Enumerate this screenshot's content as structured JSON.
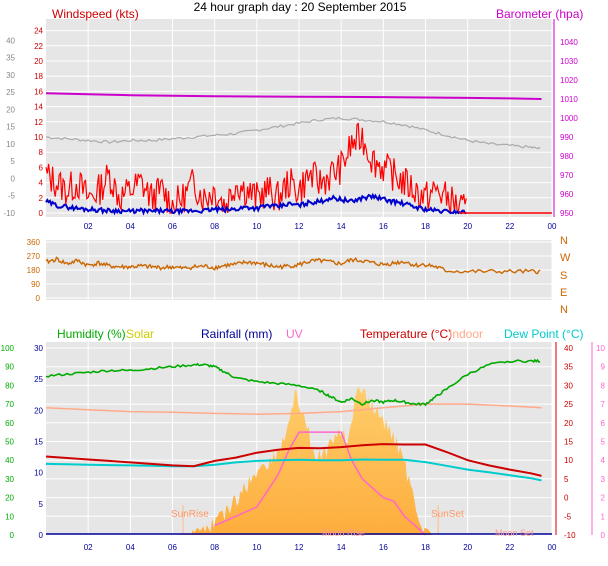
{
  "title": "24 hour graph day : 20 September 2015",
  "x_ticks": [
    "02",
    "04",
    "06",
    "08",
    "10",
    "12",
    "14",
    "16",
    "18",
    "20",
    "22",
    "00"
  ],
  "colors": {
    "windspeed": "#ff0000",
    "gust_avg": "#0000cc",
    "barometer": "#cc00cc",
    "temp_left_axis": "#888888",
    "winddir": "#cc6600",
    "humidity": "#00aa00",
    "solar": "#cccc00",
    "rainfall": "#000099",
    "uv": "#ff66cc",
    "temperature": "#cc0000",
    "indoor": "#ffaa88",
    "dewpoint": "#00cccc",
    "plot_bg": "#e6e6e6"
  },
  "chart_data": [
    {
      "type": "line",
      "panel": "wind_barometer",
      "labels": {
        "left": "Windspeed (kts)",
        "right": "Barometer (hpa)"
      },
      "left_axis_inner": {
        "ticks": [
          0,
          2,
          4,
          6,
          8,
          10,
          12,
          14,
          16,
          18,
          20,
          22,
          24
        ],
        "range": [
          0,
          25
        ]
      },
      "left_axis_outer": {
        "ticks": [
          -10,
          -5,
          0,
          5,
          10,
          15,
          20,
          25,
          30,
          35,
          40
        ],
        "range": [
          -10,
          45
        ]
      },
      "right_axis": {
        "ticks": [
          950,
          960,
          970,
          980,
          990,
          1000,
          1010,
          1020,
          1030,
          1040
        ],
        "range": [
          950,
          1050
        ]
      },
      "series": [
        {
          "axis": "right",
          "x": [
            0,
            2,
            4,
            6,
            8,
            10,
            12,
            14,
            16,
            18,
            20,
            22,
            23.5
          ],
          "values": [
            1013,
            1012.5,
            1012,
            1011.7,
            1011.5,
            1011.3,
            1011.2,
            1011.1,
            1011,
            1010.8,
            1010.6,
            1010.3,
            1010
          ]
        },
        {
          "axis": "left_outer",
          "x": [
            0,
            1,
            2,
            3,
            4,
            5,
            6,
            7,
            8,
            9,
            10,
            11,
            12,
            13,
            14,
            15,
            16,
            17,
            18,
            19,
            20,
            21,
            22,
            23,
            23.5
          ],
          "values": [
            12,
            11.5,
            11,
            10.5,
            11,
            11,
            11.5,
            12,
            12.5,
            13,
            14,
            15,
            16,
            17,
            17.5,
            17,
            16.5,
            15.5,
            14,
            12.5,
            11,
            10,
            9.5,
            9,
            8.5
          ]
        },
        {
          "axis": "left_inner",
          "x": [
            0,
            0.5,
            1,
            1.5,
            2,
            2.5,
            3,
            3.5,
            4,
            4.5,
            5,
            5.5,
            6,
            6.5,
            7,
            7.5,
            8,
            8.5,
            9,
            9.5,
            10,
            10.5,
            11,
            11.5,
            12,
            12.5,
            13,
            13.5,
            14,
            14.5,
            15,
            15.5,
            16,
            16.5,
            17,
            17.5,
            18,
            18.5,
            19,
            19.5,
            20
          ],
          "values": [
            5,
            4,
            3,
            4,
            2,
            3,
            5,
            2,
            3,
            4,
            2,
            3,
            1,
            2,
            4,
            2,
            3,
            1,
            4,
            3,
            2,
            3,
            2,
            4,
            3,
            5,
            4,
            5,
            6,
            9,
            10,
            7,
            6,
            5,
            4,
            3,
            2,
            3,
            2,
            1,
            0
          ]
        },
        {
          "axis": "left_inner",
          "x": [
            0,
            0.5,
            1,
            1.5,
            2,
            2.5,
            3,
            3.5,
            4,
            4.5,
            5,
            5.5,
            6,
            6.5,
            7,
            7.5,
            8,
            8.5,
            9,
            9.5,
            10,
            10.5,
            11,
            11.5,
            12,
            12.5,
            13,
            13.5,
            14,
            14.5,
            15,
            15.5,
            16,
            16.5,
            17,
            17.5,
            18,
            18.5,
            19,
            19.5,
            20
          ],
          "values": [
            1.5,
            1,
            0.8,
            0.6,
            0.5,
            0.4,
            0.3,
            0.3,
            0.2,
            0.3,
            0.2,
            0.3,
            0.2,
            0.2,
            0.3,
            0.3,
            0.5,
            0.4,
            0.5,
            0.8,
            0.6,
            1,
            0.8,
            1.2,
            1,
            1.4,
            1.5,
            2,
            1.8,
            1.5,
            2,
            2.2,
            1.8,
            1.5,
            1.2,
            0.8,
            0.5,
            0.3,
            0.2,
            0.1,
            0.1
          ]
        }
      ]
    },
    {
      "type": "line",
      "panel": "wind_direction",
      "left_axis": {
        "ticks": [
          0,
          90,
          180,
          270,
          360
        ],
        "range": [
          0,
          360
        ]
      },
      "right_axis": {
        "ticks": [
          "N",
          "W",
          "S",
          "E",
          "N"
        ]
      },
      "series": [
        {
          "x": [
            0,
            0.5,
            1,
            1.5,
            2,
            2.5,
            3,
            3.5,
            4,
            4.5,
            5,
            5.5,
            6,
            6.5,
            7,
            7.5,
            8,
            8.5,
            9,
            9.5,
            10,
            10.5,
            11,
            11.5,
            12,
            12.5,
            13,
            13.5,
            14,
            14.5,
            15,
            15.5,
            16,
            16.5,
            17,
            17.5,
            18,
            18.5,
            19,
            20,
            21,
            22,
            23,
            23.5
          ],
          "values": [
            230,
            250,
            220,
            240,
            210,
            225,
            205,
            200,
            200,
            205,
            200,
            195,
            200,
            190,
            200,
            205,
            195,
            210,
            215,
            230,
            225,
            210,
            200,
            205,
            215,
            235,
            240,
            230,
            220,
            245,
            240,
            225,
            215,
            225,
            235,
            210,
            215,
            200,
            175,
            170,
            170,
            170,
            170,
            170
          ]
        }
      ]
    },
    {
      "type": "line",
      "panel": "temperature_humidity",
      "labels": {
        "humidity": "Humidity (%)",
        "solar": "Solar",
        "rainfall": "Rainfall (mm)",
        "uv": "UV",
        "temperature": "Temperature (°C)",
        "indoor": "Indoor",
        "dewpoint": "Dew Point (°C)",
        "sunrise": "SunRise",
        "sunset": "SunSet",
        "moonrise": "Moon Rise",
        "moonset": "Moon Set"
      },
      "humidity_axis": {
        "ticks": [
          0,
          10,
          20,
          30,
          40,
          50,
          60,
          70,
          80,
          90,
          100
        ],
        "range": [
          0,
          100
        ]
      },
      "rain_axis": {
        "ticks": [
          0,
          5,
          10,
          15,
          20,
          25,
          30
        ],
        "range": [
          0,
          30
        ]
      },
      "temp_axis": {
        "ticks": [
          -10,
          -5,
          0,
          5,
          10,
          15,
          20,
          25,
          30,
          35,
          40
        ],
        "range": [
          -10,
          40
        ]
      },
      "uv_axis": {
        "ticks": [
          0,
          1,
          2,
          3,
          4,
          5,
          6,
          7,
          8,
          9,
          10
        ],
        "range": [
          0,
          10
        ]
      },
      "series": [
        {
          "name": "Humidity (%)",
          "axis": "humidity",
          "x": [
            0,
            1,
            2,
            3,
            4,
            5,
            6,
            7,
            7.5,
            8,
            8.5,
            9,
            10,
            11,
            12,
            13,
            13.5,
            14,
            14.5,
            15,
            15.5,
            16,
            16.5,
            17,
            17.5,
            18,
            18.5,
            19,
            20,
            21,
            22,
            23,
            23.5
          ],
          "values": [
            85,
            86,
            87,
            88,
            88,
            89,
            90,
            91,
            91,
            90,
            87,
            84,
            82,
            81,
            80,
            77,
            74,
            71,
            73,
            70,
            72,
            71,
            72,
            71,
            70,
            70,
            74,
            78,
            86,
            91,
            93,
            93,
            93
          ]
        },
        {
          "name": "Indoor",
          "axis": "temp",
          "x": [
            0,
            2,
            4,
            6,
            8,
            10,
            12,
            14,
            16,
            18,
            20,
            22,
            23.5
          ],
          "values": [
            24,
            23.5,
            23,
            22.8,
            22.5,
            22.3,
            22.5,
            23,
            24,
            25,
            25,
            24.5,
            24
          ]
        },
        {
          "name": "Temperature (°C)",
          "axis": "temp",
          "x": [
            0,
            1,
            2,
            3,
            4,
            5,
            6,
            7,
            8,
            9,
            10,
            11,
            12,
            13,
            14,
            15,
            16,
            17,
            18,
            19,
            20,
            21,
            22,
            23,
            23.5
          ],
          "values": [
            11,
            10.6,
            10.2,
            9.8,
            9.4,
            9,
            8.6,
            8.4,
            9.8,
            10.7,
            12,
            12.8,
            13.3,
            13.2,
            13.5,
            14,
            14.3,
            14.2,
            14.2,
            12.2,
            10,
            8.6,
            7.5,
            6.5,
            5.8
          ]
        },
        {
          "name": "Dew Point (°C)",
          "axis": "temp",
          "x": [
            0,
            1,
            2,
            3,
            4,
            5,
            6,
            7,
            8,
            9,
            10,
            11,
            12,
            13,
            14,
            15,
            16,
            17,
            18,
            19,
            20,
            21,
            22,
            23,
            23.5
          ],
          "values": [
            9,
            8.9,
            8.8,
            8.7,
            8.6,
            8.5,
            8.4,
            8.4,
            8.8,
            9.4,
            9.8,
            10,
            10.1,
            10,
            10,
            10.2,
            10.1,
            10.1,
            9.5,
            8.5,
            7.5,
            6.8,
            6,
            5.2,
            4.6
          ]
        },
        {
          "name": "Solar",
          "axis": "uv",
          "x": [
            6.3,
            6.8,
            7.3,
            7.8,
            8.3,
            8.8,
            9.3,
            9.8,
            10.3,
            10.8,
            11.3,
            11.8,
            12.3,
            12.8,
            13.3,
            13.8,
            14.3,
            14.8,
            15.3,
            15.8,
            16.3,
            16.8,
            17.3,
            17.8,
            18.3
          ],
          "values": [
            0,
            0.2,
            0.5,
            0.9,
            1.4,
            2,
            2.7,
            3.5,
            4.2,
            4.5,
            5.5,
            8,
            6.5,
            4.5,
            5,
            6,
            5.5,
            8.5,
            7.5,
            6.8,
            6,
            5,
            3,
            1,
            0
          ]
        },
        {
          "name": "UV",
          "axis": "uv",
          "x": [
            8,
            9,
            10,
            11,
            11.5,
            12,
            13,
            14,
            14.5,
            15,
            16,
            16.5,
            17,
            17.5,
            18
          ],
          "values": [
            0.5,
            1,
            1.5,
            3.2,
            4.5,
            5.5,
            5.5,
            5.5,
            4,
            3,
            2,
            1.8,
            1,
            0.5,
            0
          ]
        }
      ]
    }
  ]
}
